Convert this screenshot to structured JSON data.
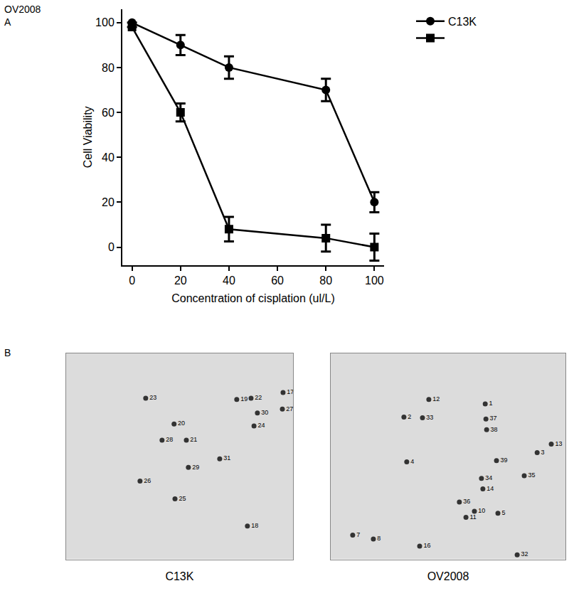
{
  "chart_data": [
    {
      "type": "line",
      "annotations": [
        "OV2008",
        "A"
      ],
      "x_label": "Concentration of cisplation (ul/L)",
      "y_label": "Cell Viability",
      "x": [
        0,
        20,
        40,
        80,
        100
      ],
      "series": [
        {
          "name": "C13K",
          "color": "#000000",
          "marker": "circle",
          "values": [
            100,
            90,
            80,
            70,
            20
          ],
          "errors": [
            0,
            4.5,
            5,
            5,
            4.5
          ]
        },
        {
          "color": "#000000",
          "marker": "square",
          "values": [
            98,
            60,
            8,
            4,
            0
          ],
          "errors": [
            0,
            4,
            5.5,
            6,
            6
          ]
        }
      ],
      "xlim": [
        -4,
        104
      ],
      "ylim": [
        -8,
        106
      ],
      "xticks": [
        0,
        20,
        40,
        60,
        80,
        100
      ],
      "yticks": [
        0,
        20,
        40,
        60,
        80,
        100
      ],
      "grid": false,
      "legend": "upper right"
    },
    {
      "type": "scatter",
      "annotations": [
        "B"
      ],
      "x_label": "C13K",
      "xlim": [
        0,
        100
      ],
      "ylim": [
        0,
        100
      ],
      "tick_labels": false,
      "data_labels": true,
      "color": "#333333",
      "marker": "circle",
      "x": [
        35.1,
        75.2,
        81.5,
        95.6,
        95.3,
        84.3,
        82.8,
        47.6,
        42.3,
        53.0,
        53.9,
        67.7,
        32.6,
        48.0,
        79.9
      ],
      "y": [
        78.2,
        77.6,
        78.2,
        80.9,
        72.9,
        71.0,
        64.7,
        65.7,
        57.8,
        57.8,
        44.6,
        48.8,
        38.0,
        29.4,
        16.2
      ],
      "labels": [
        "23",
        "19",
        "22",
        "17",
        "27",
        "30",
        "24",
        "20",
        "28",
        "21",
        "29",
        "31",
        "26",
        "25",
        "18"
      ]
    },
    {
      "type": "scatter",
      "x_label": "OV2008",
      "xlim": [
        0,
        100
      ],
      "ylim": [
        0,
        100
      ],
      "tick_labels": false,
      "data_labels": true,
      "color": "#333333",
      "marker": "circle",
      "x": [
        41.8,
        65.8,
        31.2,
        39.1,
        66.1,
        66.4,
        93.9,
        87.9,
        32.4,
        70.6,
        64.2,
        82.4,
        64.8,
        54.8,
        61.2,
        57.6,
        71.2,
        9.4,
        18.2,
        37.9,
        79.4
      ],
      "y": [
        77.6,
        75.4,
        69.0,
        68.7,
        68.1,
        62.9,
        55.9,
        51.8,
        47.3,
        47.9,
        39.3,
        40.6,
        34.2,
        27.8,
        23.3,
        20.4,
        22.4,
        11.8,
        9.9,
        6.4,
        2.2
      ],
      "labels": [
        "12",
        "1",
        "2",
        "33",
        "37",
        "38",
        "13",
        "3",
        "4",
        "39",
        "34",
        "35",
        "14",
        "36",
        "10",
        "11",
        "5",
        "7",
        "8",
        "16",
        "32"
      ]
    }
  ]
}
